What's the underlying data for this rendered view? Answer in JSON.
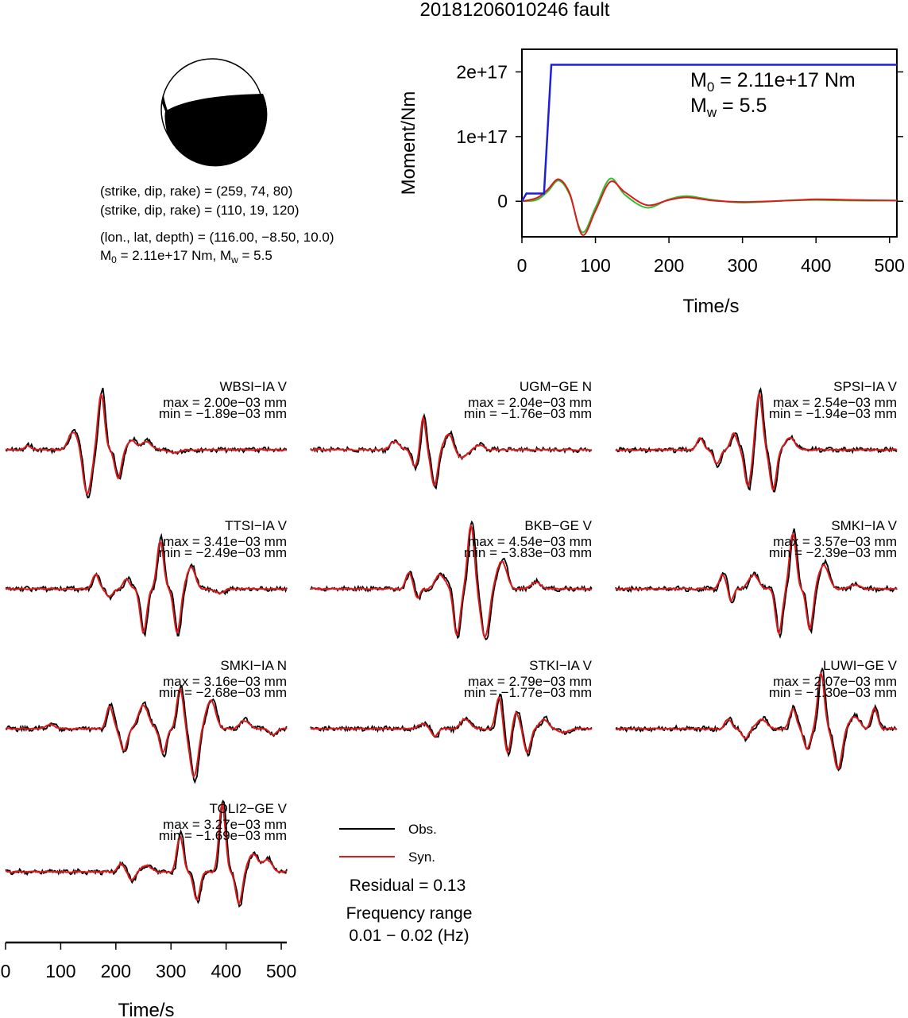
{
  "figure": {
    "title": "20181206010246 fault",
    "fault_info": {
      "plane1": "(strike, dip, rake) = (259, 74, 80)",
      "plane2": "(strike, dip, rake) = (110, 19, 120)",
      "location": "(lon., lat, depth) = (116.00, −8.50, 10.0)",
      "moment_line": "M0 = 2.11e+17 Nm, Mw = 5.5"
    },
    "legend": {
      "obs": "Obs.",
      "syn": "Syn."
    },
    "residual": "Residual = 0.13",
    "freq_label": "Frequency range",
    "freq_value": "0.01 − 0.02 (Hz)",
    "colors": {
      "obs": "#000000",
      "syn": "#e0191b",
      "stf": "#1f1fd6",
      "stf_green": "#2ec02e",
      "beachball_fill": "#000000"
    }
  },
  "chart_data": [
    {
      "type": "line",
      "name": "moment_rate_function",
      "xlabel": "Time/s",
      "ylabel": "Moment/Nm",
      "xlim": [
        0,
        510
      ],
      "ylim": [
        -5.5e+16,
        2.35e+17
      ],
      "xticks": [
        "0",
        "100",
        "200",
        "300",
        "400",
        "500"
      ],
      "yticks": [
        "0",
        "1e+17",
        "2e+17"
      ],
      "annotation": {
        "m0": "M0 = 2.11e+17 Nm",
        "mw": "Mw = 5.5"
      },
      "cumulative_moment": {
        "x": [
          0,
          6,
          30,
          40,
          45,
          510
        ],
        "y": [
          0,
          1.2e+16,
          1.2e+16,
          2.11e+17,
          2.11e+17,
          2.11e+17
        ]
      },
      "series": [
        {
          "x": [
            0,
            20,
            35,
            50,
            65,
            82,
            100,
            120,
            140,
            170,
            200,
            225,
            260,
            300,
            360,
            400,
            450,
            510
          ],
          "values": [
            0,
            2000000000000000.0,
            1.5e+16,
            3.2e+16,
            1e+16,
            -4.8e+16,
            -1e+16,
            3.5e+16,
            1e+16,
            -1e+16,
            3000000000000000.0,
            8000000000000000.0,
            2000000000000000.0,
            -2000000000000000.0,
            1000000000000000.0,
            2000000000000000.0,
            1000000000000000.0,
            1000000000000000.0
          ]
        },
        {
          "x": [
            0,
            20,
            35,
            50,
            65,
            82,
            100,
            120,
            140,
            170,
            200,
            225,
            260,
            300,
            360,
            400,
            450,
            510
          ],
          "values": [
            0,
            5000000000000000.0,
            1.8e+16,
            3.4e+16,
            1.2e+16,
            -5.2e+16,
            -1.5e+16,
            3e+16,
            1.4e+16,
            -6000000000000000.0,
            2000000000000000.0,
            6000000000000000.0,
            1000000000000000.0,
            -1000000000000000.0,
            1000000000000000.0,
            3000000000000000.0,
            2000000000000000.0,
            1000000000000000.0
          ]
        }
      ]
    },
    {
      "type": "line",
      "name": "waveforms",
      "xlabel": "Time/s",
      "xlim": [
        0,
        510
      ],
      "xticks": [
        "0",
        "100",
        "200",
        "300",
        "400",
        "500"
      ],
      "series_names": [
        "Obs.",
        "Syn."
      ],
      "stations": [
        {
          "label": "WBSI−IA V",
          "max": "max = 2.00e−03 mm",
          "min": "min = −1.89e−03 mm"
        },
        {
          "label": "UGM−GE N",
          "max": "max = 2.04e−03 mm",
          "min": "min = −1.76e−03 mm"
        },
        {
          "label": "SPSI−IA V",
          "max": "max = 2.54e−03 mm",
          "min": "min = −1.94e−03 mm"
        },
        {
          "label": "TTSI−IA V",
          "max": "max = 3.41e−03 mm",
          "min": "min = −2.49e−03 mm"
        },
        {
          "label": "BKB−GE V",
          "max": "max = 4.54e−03 mm",
          "min": "min = −3.83e−03 mm"
        },
        {
          "label": "SMKI−IA V",
          "max": "max = 3.57e−03 mm",
          "min": "min = −2.39e−03 mm"
        },
        {
          "label": "SMKI−IA N",
          "max": "max = 3.16e−03 mm",
          "min": "min = −2.68e−03 mm"
        },
        {
          "label": "STKI−IA V",
          "max": "max = 2.79e−03 mm",
          "min": "min = −1.77e−03 mm"
        },
        {
          "label": "LUWI−GE V",
          "max": "max = 2.07e−03 mm",
          "min": "min = −1.30e−03 mm"
        },
        {
          "label": "TOLI2−GE V",
          "max": "max = 3.27e−03 mm",
          "min": "min = −1.69e−03 mm"
        }
      ]
    }
  ]
}
